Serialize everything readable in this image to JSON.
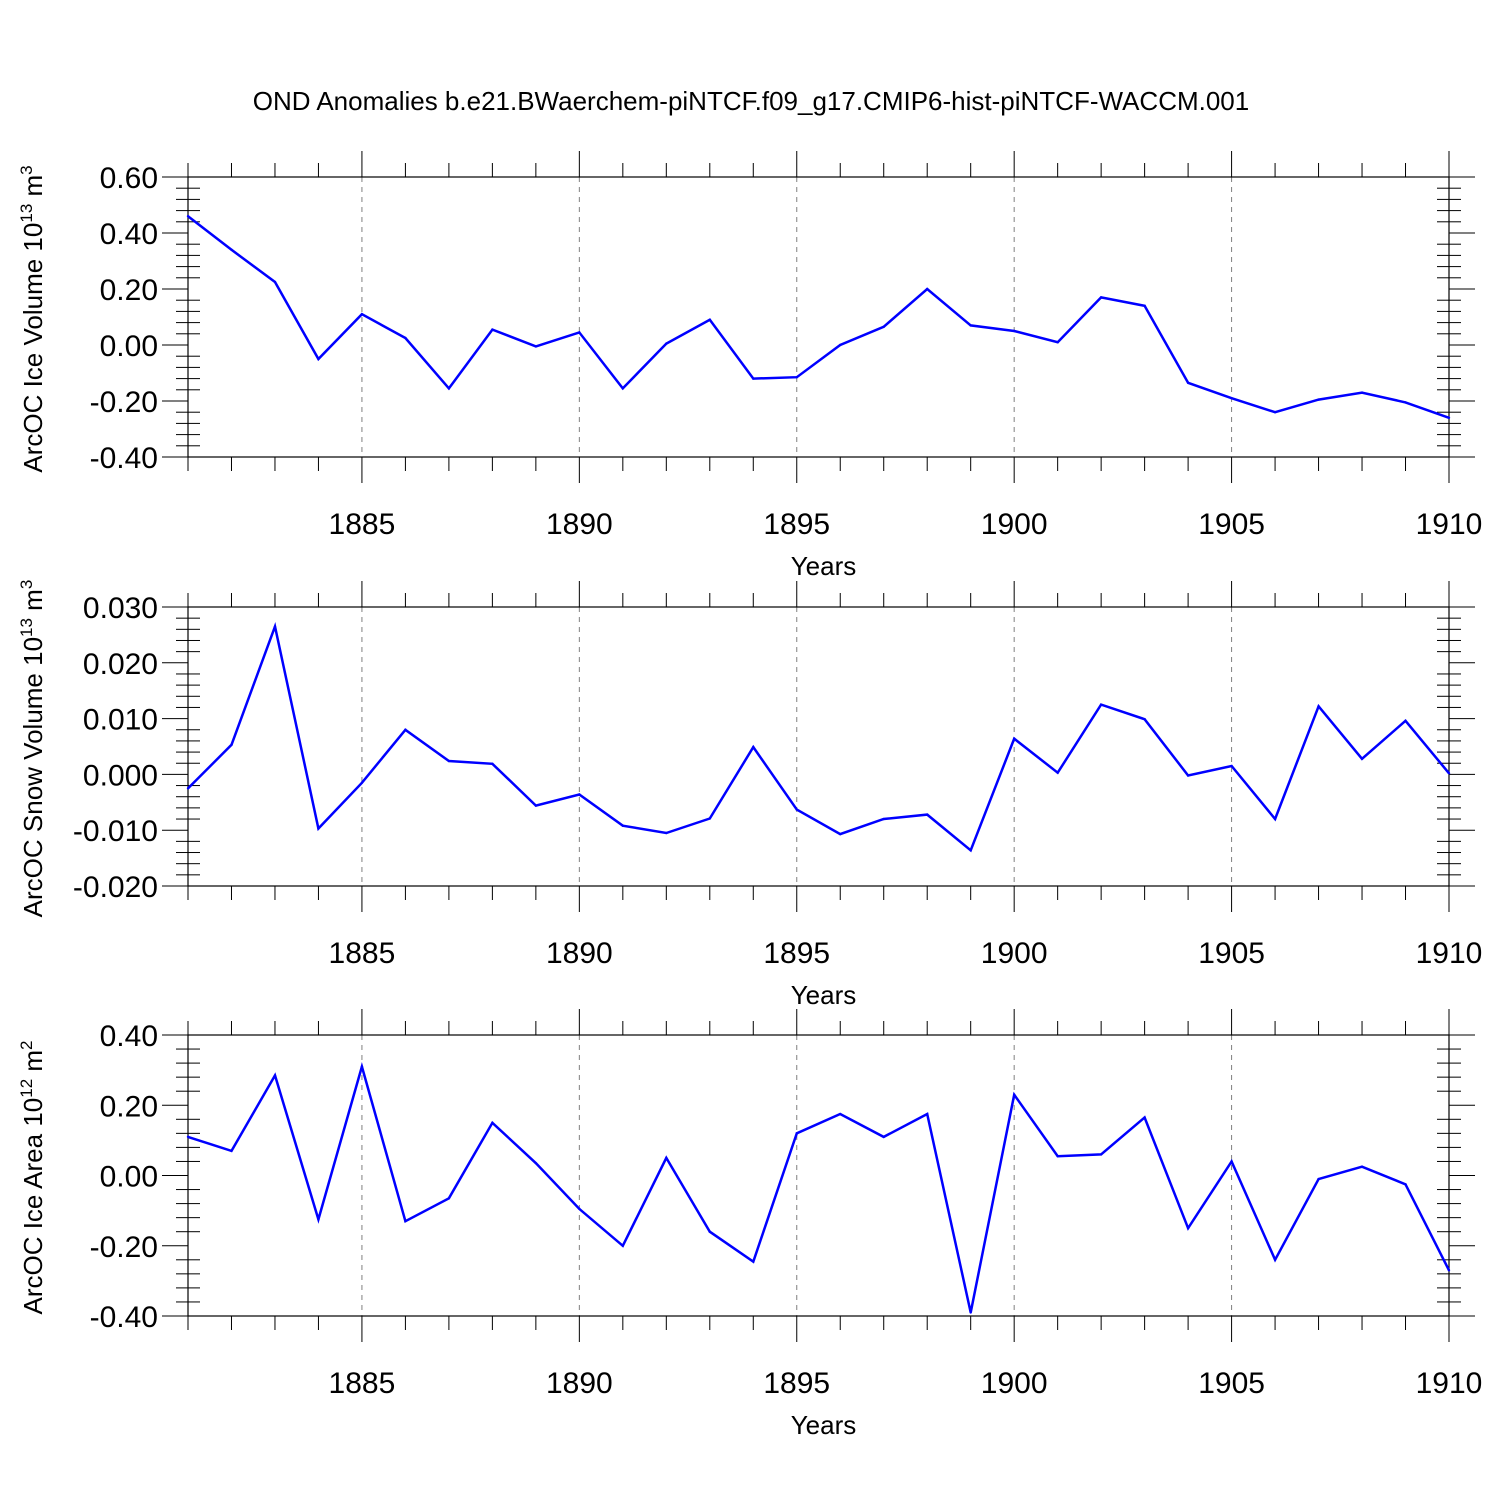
{
  "title": "OND Anomalies b.e21.BWaerchem-piNTCF.f09_g17.CMIP6-hist-piNTCF-WACCM.001",
  "line_color": "#0000ff",
  "grid_color": "#808080",
  "chart_data": [
    {
      "type": "line",
      "ylabel": {
        "main": "ArcOC Ice Volume 10",
        "exp": "13",
        "unit": " m",
        "unit_exp": "3"
      },
      "xlabel": "Years",
      "xlim": [
        1881,
        1910
      ],
      "ylim": [
        -0.4,
        0.6
      ],
      "yticks": [
        -0.4,
        -0.2,
        0.0,
        0.2,
        0.4,
        0.6
      ],
      "ytick_labels": [
        "-0.40",
        "-0.20",
        "0.00",
        "0.20",
        "0.40",
        "0.60"
      ],
      "xticks": [
        1885,
        1890,
        1895,
        1900,
        1905,
        1910
      ],
      "xtick_labels": [
        "1885",
        "1890",
        "1895",
        "1900",
        "1905",
        "1910"
      ],
      "grid": "vertical dashed at major x ticks",
      "x": [
        1881,
        1882,
        1883,
        1884,
        1885,
        1886,
        1887,
        1888,
        1889,
        1890,
        1891,
        1892,
        1893,
        1894,
        1895,
        1896,
        1897,
        1898,
        1899,
        1900,
        1901,
        1902,
        1903,
        1904,
        1905,
        1906,
        1907,
        1908,
        1909,
        1910
      ],
      "values": [
        0.46,
        0.34,
        0.225,
        -0.05,
        0.11,
        0.025,
        -0.155,
        0.055,
        -0.005,
        0.045,
        -0.155,
        0.005,
        0.09,
        -0.12,
        -0.115,
        0.0,
        0.065,
        0.2,
        0.07,
        0.05,
        0.01,
        0.17,
        0.14,
        -0.135,
        -0.19,
        -0.24,
        -0.195,
        -0.17,
        -0.205,
        -0.26
      ]
    },
    {
      "type": "line",
      "ylabel": {
        "main": "ArcOC Snow Volume 10",
        "exp": "13",
        "unit": " m",
        "unit_exp": "3"
      },
      "xlabel": "Years",
      "xlim": [
        1881,
        1910
      ],
      "ylim": [
        -0.02,
        0.03
      ],
      "yticks": [
        -0.02,
        -0.01,
        0.0,
        0.01,
        0.02,
        0.03
      ],
      "ytick_labels": [
        "-0.020",
        "-0.010",
        "0.000",
        "0.010",
        "0.020",
        "0.030"
      ],
      "xticks": [
        1885,
        1890,
        1895,
        1900,
        1905,
        1910
      ],
      "xtick_labels": [
        "1885",
        "1890",
        "1895",
        "1900",
        "1905",
        "1910"
      ],
      "grid": "vertical dashed at major x ticks",
      "x": [
        1881,
        1882,
        1883,
        1884,
        1885,
        1886,
        1887,
        1888,
        1889,
        1890,
        1891,
        1892,
        1893,
        1894,
        1895,
        1896,
        1897,
        1898,
        1899,
        1900,
        1901,
        1902,
        1903,
        1904,
        1905,
        1906,
        1907,
        1908,
        1909,
        1910
      ],
      "values": [
        -0.0025,
        0.0053,
        0.0265,
        -0.0097,
        -0.0015,
        0.008,
        0.0024,
        0.0019,
        -0.0056,
        -0.0036,
        -0.0092,
        -0.0105,
        -0.0079,
        0.0049,
        -0.0063,
        -0.0107,
        -0.008,
        -0.0072,
        -0.0136,
        0.0064,
        0.0003,
        0.0125,
        0.0099,
        -0.0002,
        0.0015,
        -0.008,
        0.0122,
        0.0028,
        0.0096,
        0.0002
      ]
    },
    {
      "type": "line",
      "ylabel": {
        "main": "ArcOC Ice Area 10",
        "exp": "12",
        "unit": " m",
        "unit_exp": "2"
      },
      "xlabel": "Years",
      "xlim": [
        1881,
        1910
      ],
      "ylim": [
        -0.4,
        0.4
      ],
      "yticks": [
        -0.4,
        -0.2,
        0.0,
        0.2,
        0.4
      ],
      "ytick_labels": [
        "-0.40",
        "-0.20",
        "0.00",
        "0.20",
        "0.40"
      ],
      "xticks": [
        1885,
        1890,
        1895,
        1900,
        1905,
        1910
      ],
      "xtick_labels": [
        "1885",
        "1890",
        "1895",
        "1900",
        "1905",
        "1910"
      ],
      "grid": "vertical dashed at major x ticks",
      "x": [
        1881,
        1882,
        1883,
        1884,
        1885,
        1886,
        1887,
        1888,
        1889,
        1890,
        1891,
        1892,
        1893,
        1894,
        1895,
        1896,
        1897,
        1898,
        1899,
        1900,
        1901,
        1902,
        1903,
        1904,
        1905,
        1906,
        1907,
        1908,
        1909,
        1910
      ],
      "values": [
        0.11,
        0.07,
        0.285,
        -0.125,
        0.31,
        -0.13,
        -0.065,
        0.15,
        0.035,
        -0.095,
        -0.2,
        0.05,
        -0.16,
        -0.245,
        0.12,
        0.175,
        0.11,
        0.175,
        -0.39,
        0.23,
        0.055,
        0.06,
        0.165,
        -0.15,
        0.04,
        -0.24,
        -0.01,
        0.025,
        -0.025,
        -0.27
      ]
    }
  ]
}
